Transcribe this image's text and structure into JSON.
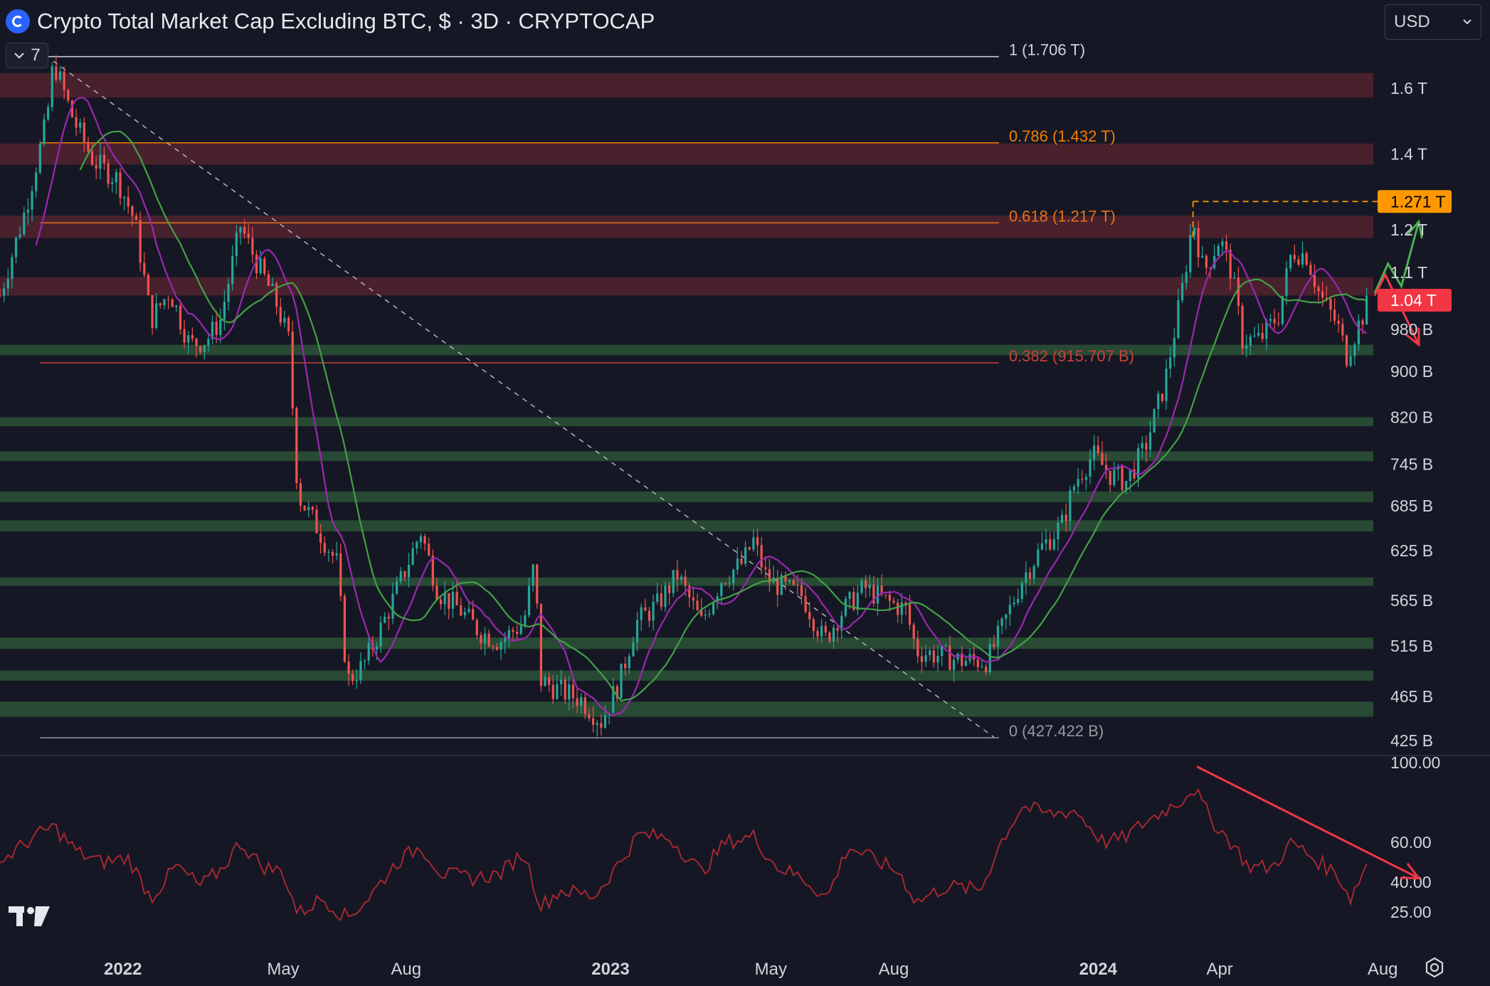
{
  "header": {
    "title": "Crypto Total Market Cap Excluding BTC, $ · 3D · CRYPTOCAP",
    "collapse_label": "7",
    "currency": "USD",
    "logo_icon": "cryptocap-logo-icon",
    "tradingview_icon": "tradingview-logo-icon",
    "settings_icon": "settings-icon"
  },
  "chart_data": {
    "type": "candlestick",
    "log_scale": true,
    "ylim": [
      425,
      1720
    ],
    "y_unit": "B",
    "price_ticks": [
      {
        "value": 1600,
        "label": "1.6 T"
      },
      {
        "value": 1400,
        "label": "1.4 T"
      },
      {
        "value": 1200,
        "label": "1.2 T"
      },
      {
        "value": 1100,
        "label": "1.1 T"
      },
      {
        "value": 980,
        "label": "980 B"
      },
      {
        "value": 900,
        "label": "900 B"
      },
      {
        "value": 820,
        "label": "820 B"
      },
      {
        "value": 745,
        "label": "745 B"
      },
      {
        "value": 685,
        "label": "685 B"
      },
      {
        "value": 625,
        "label": "625 B"
      },
      {
        "value": 565,
        "label": "565 B"
      },
      {
        "value": 515,
        "label": "515 B"
      },
      {
        "value": 465,
        "label": "465 B"
      },
      {
        "value": 425,
        "label": "425 B"
      }
    ],
    "x_ticks": [
      {
        "date": "2022-01-01",
        "label": "2022",
        "bold": true
      },
      {
        "date": "2022-05-01",
        "label": "May",
        "bold": false
      },
      {
        "date": "2022-08-01",
        "label": "Aug",
        "bold": false
      },
      {
        "date": "2023-01-01",
        "label": "2023",
        "bold": true
      },
      {
        "date": "2023-05-01",
        "label": "May",
        "bold": false
      },
      {
        "date": "2023-08-01",
        "label": "Aug",
        "bold": false
      },
      {
        "date": "2024-01-01",
        "label": "2024",
        "bold": true
      },
      {
        "date": "2024-04-01",
        "label": "Apr",
        "bold": false
      },
      {
        "date": "2024-08-01",
        "label": "Aug",
        "bold": false
      }
    ],
    "x_range": [
      "2021-10-01",
      "2024-10-15"
    ],
    "price_path": [
      [
        "2021-10-01",
        1050
      ],
      [
        "2021-10-20",
        1250
      ],
      [
        "2021-11-05",
        1500
      ],
      [
        "2021-11-10",
        1690
      ],
      [
        "2021-11-25",
        1500
      ],
      [
        "2021-12-10",
        1380
      ],
      [
        "2021-12-28",
        1330
      ],
      [
        "2022-01-10",
        1220
      ],
      [
        "2022-01-22",
        1000
      ],
      [
        "2022-02-05",
        1060
      ],
      [
        "2022-02-20",
        950
      ],
      [
        "2022-03-05",
        960
      ],
      [
        "2022-03-15",
        1000
      ],
      [
        "2022-03-30",
        1210
      ],
      [
        "2022-04-10",
        1130
      ],
      [
        "2022-04-25",
        1040
      ],
      [
        "2022-05-05",
        960
      ],
      [
        "2022-05-12",
        700
      ],
      [
        "2022-05-25",
        660
      ],
      [
        "2022-06-10",
        610
      ],
      [
        "2022-06-18",
        480
      ],
      [
        "2022-06-30",
        495
      ],
      [
        "2022-07-15",
        540
      ],
      [
        "2022-07-31",
        600
      ],
      [
        "2022-08-12",
        650
      ],
      [
        "2022-08-25",
        575
      ],
      [
        "2022-09-10",
        555
      ],
      [
        "2022-09-25",
        530
      ],
      [
        "2022-10-10",
        520
      ],
      [
        "2022-10-28",
        540
      ],
      [
        "2022-11-05",
        610
      ],
      [
        "2022-11-10",
        480
      ],
      [
        "2022-11-25",
        470
      ],
      [
        "2022-12-10",
        462
      ],
      [
        "2022-12-25",
        442
      ],
      [
        "2023-01-08",
        480
      ],
      [
        "2023-01-20",
        540
      ],
      [
        "2023-02-05",
        560
      ],
      [
        "2023-02-20",
        595
      ],
      [
        "2023-03-10",
        540
      ],
      [
        "2023-03-25",
        590
      ],
      [
        "2023-04-10",
        610
      ],
      [
        "2023-04-18",
        638
      ],
      [
        "2023-04-28",
        590
      ],
      [
        "2023-05-10",
        580
      ],
      [
        "2023-05-25",
        570
      ],
      [
        "2023-06-10",
        520
      ],
      [
        "2023-06-22",
        550
      ],
      [
        "2023-07-10",
        580
      ],
      [
        "2023-07-25",
        565
      ],
      [
        "2023-08-10",
        555
      ],
      [
        "2023-08-18",
        510
      ],
      [
        "2023-09-05",
        505
      ],
      [
        "2023-09-20",
        500
      ],
      [
        "2023-10-10",
        500
      ],
      [
        "2023-10-20",
        530
      ],
      [
        "2023-11-05",
        590
      ],
      [
        "2023-11-20",
        630
      ],
      [
        "2023-12-05",
        660
      ],
      [
        "2023-12-15",
        720
      ],
      [
        "2023-12-28",
        760
      ],
      [
        "2024-01-10",
        730
      ],
      [
        "2024-01-22",
        720
      ],
      [
        "2024-02-05",
        770
      ],
      [
        "2024-02-20",
        880
      ],
      [
        "2024-03-05",
        1080
      ],
      [
        "2024-03-12",
        1230
      ],
      [
        "2024-03-20",
        1100
      ],
      [
        "2024-04-01",
        1180
      ],
      [
        "2024-04-10",
        1100
      ],
      [
        "2024-04-18",
        960
      ],
      [
        "2024-05-01",
        960
      ],
      [
        "2024-05-15",
        1010
      ],
      [
        "2024-05-25",
        1150
      ],
      [
        "2024-06-05",
        1140
      ],
      [
        "2024-06-15",
        1050
      ],
      [
        "2024-06-28",
        990
      ],
      [
        "2024-07-05",
        930
      ],
      [
        "2024-07-14",
        990
      ],
      [
        "2024-07-22",
        1040
      ]
    ],
    "moving_averages": [
      {
        "color": "#9c27b0",
        "period": 9
      },
      {
        "color": "#43a047",
        "period": 20
      }
    ],
    "support_zones": [
      {
        "low": 930,
        "high": 950
      },
      {
        "low": 805,
        "high": 820
      },
      {
        "low": 750,
        "high": 765
      },
      {
        "low": 690,
        "high": 705
      },
      {
        "low": 650,
        "high": 665
      },
      {
        "low": 582,
        "high": 592
      },
      {
        "low": 512,
        "high": 524
      },
      {
        "low": 480,
        "high": 490
      },
      {
        "low": 446,
        "high": 460
      }
    ],
    "resistance_zones": [
      {
        "low": 1570,
        "high": 1650
      },
      {
        "low": 1370,
        "high": 1430
      },
      {
        "low": 1180,
        "high": 1235
      },
      {
        "low": 1050,
        "high": 1090
      }
    ],
    "fibonacci": {
      "start_date": "2021-11-08",
      "end_date": "2023-10-15",
      "levels": [
        {
          "value": 1706,
          "label": "1 (1.706 T)",
          "color": "#d1d4dc"
        },
        {
          "value": 1432,
          "label": "0.786 (1.432 T)",
          "color": "#f57c00"
        },
        {
          "value": 1217,
          "label": "0.618 (1.217 T)",
          "color": "#e8711a"
        },
        {
          "value": 915.707,
          "label": "0.382 (915.707 B)",
          "color": "#c8413b"
        },
        {
          "value": 427.422,
          "label": "0 (427.422 B)",
          "color": "#9598a1"
        }
      ]
    },
    "trendline": {
      "start": [
        "2021-11-10",
        1690
      ],
      "end": [
        "2023-10-15",
        428
      ]
    },
    "price_labels": [
      {
        "value": 1271,
        "label": "1.271 T",
        "color": "#ff9800"
      },
      {
        "value": 1040,
        "label": "1.04 T",
        "color": "#f23645"
      }
    ],
    "projection_up": [
      [
        "2024-07-26",
        1055
      ],
      [
        "2024-08-05",
        1120
      ],
      [
        "2024-08-15",
        1070
      ],
      [
        "2024-08-28",
        1220
      ]
    ],
    "projection_down": [
      [
        "2024-07-26",
        1050
      ],
      [
        "2024-08-03",
        1095
      ],
      [
        "2024-08-28",
        950
      ]
    ],
    "rsi": {
      "ylim": [
        15,
        100
      ],
      "ticks": [
        {
          "value": 100,
          "label": "100.00"
        },
        {
          "value": 60,
          "label": "60.00"
        },
        {
          "value": 40,
          "label": "40.00"
        },
        {
          "value": 25,
          "label": "25.00"
        }
      ],
      "path": [
        [
          "2021-10-01",
          50
        ],
        [
          "2021-10-25",
          62
        ],
        [
          "2021-11-10",
          68
        ],
        [
          "2021-11-28",
          55
        ],
        [
          "2021-12-15",
          50
        ],
        [
          "2022-01-05",
          52
        ],
        [
          "2022-01-22",
          32
        ],
        [
          "2022-02-10",
          48
        ],
        [
          "2022-02-28",
          38
        ],
        [
          "2022-03-15",
          46
        ],
        [
          "2022-03-30",
          60
        ],
        [
          "2022-04-15",
          48
        ],
        [
          "2022-05-01",
          45
        ],
        [
          "2022-05-12",
          24
        ],
        [
          "2022-05-30",
          32
        ],
        [
          "2022-06-18",
          22
        ],
        [
          "2022-07-05",
          33
        ],
        [
          "2022-07-25",
          50
        ],
        [
          "2022-08-12",
          58
        ],
        [
          "2022-08-28",
          44
        ],
        [
          "2022-09-20",
          42
        ],
        [
          "2022-10-10",
          44
        ],
        [
          "2022-10-28",
          55
        ],
        [
          "2022-11-10",
          28
        ],
        [
          "2022-11-25",
          36
        ],
        [
          "2022-12-20",
          33
        ],
        [
          "2023-01-08",
          50
        ],
        [
          "2023-01-22",
          64
        ],
        [
          "2023-02-15",
          62
        ],
        [
          "2023-03-10",
          45
        ],
        [
          "2023-03-28",
          60
        ],
        [
          "2023-04-18",
          63
        ],
        [
          "2023-05-05",
          48
        ],
        [
          "2023-05-25",
          42
        ],
        [
          "2023-06-12",
          32
        ],
        [
          "2023-06-28",
          58
        ],
        [
          "2023-07-15",
          52
        ],
        [
          "2023-08-05",
          45
        ],
        [
          "2023-08-18",
          30
        ],
        [
          "2023-09-10",
          38
        ],
        [
          "2023-10-05",
          36
        ],
        [
          "2023-10-20",
          60
        ],
        [
          "2023-11-05",
          78
        ],
        [
          "2023-11-25",
          74
        ],
        [
          "2023-12-15",
          76
        ],
        [
          "2024-01-05",
          60
        ],
        [
          "2024-01-20",
          62
        ],
        [
          "2024-02-05",
          70
        ],
        [
          "2024-03-05",
          82
        ],
        [
          "2024-03-12",
          88
        ],
        [
          "2024-03-25",
          72
        ],
        [
          "2024-04-12",
          58
        ],
        [
          "2024-04-22",
          48
        ],
        [
          "2024-05-10",
          47
        ],
        [
          "2024-05-25",
          60
        ],
        [
          "2024-06-10",
          52
        ],
        [
          "2024-06-28",
          44
        ],
        [
          "2024-07-08",
          32
        ],
        [
          "2024-07-22",
          52
        ]
      ],
      "arrow": {
        "start": [
          "2024-03-15",
          98
        ],
        "end": [
          "2024-08-28",
          42
        ]
      }
    }
  }
}
